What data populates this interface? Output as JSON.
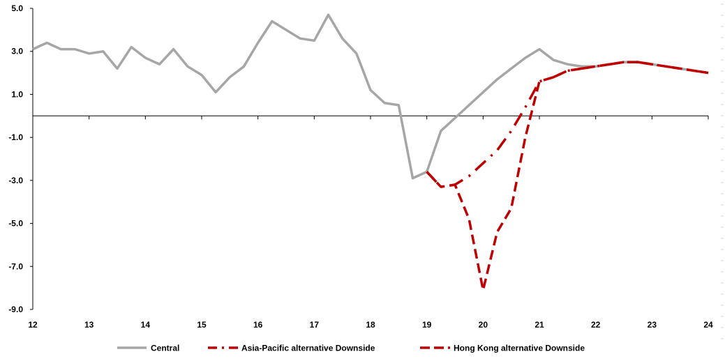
{
  "chart_data": {
    "type": "line",
    "title": "",
    "xlabel": "",
    "ylabel": "",
    "ylim": [
      -9,
      5
    ],
    "xlim": [
      12,
      24
    ],
    "y_ticks": [
      {
        "value": 5,
        "label": "5.0"
      },
      {
        "value": 3,
        "label": "3.0"
      },
      {
        "value": 1,
        "label": "1.0"
      },
      {
        "value": -1,
        "label": "-1.0"
      },
      {
        "value": -3,
        "label": "-3.0"
      },
      {
        "value": -5,
        "label": "-5.0"
      },
      {
        "value": -7,
        "label": "-7.0"
      },
      {
        "value": -9,
        "label": "-9.0"
      }
    ],
    "x_ticks": [
      {
        "value": 12,
        "label": "12"
      },
      {
        "value": 13,
        "label": "13"
      },
      {
        "value": 14,
        "label": "14"
      },
      {
        "value": 15,
        "label": "15"
      },
      {
        "value": 16,
        "label": "16"
      },
      {
        "value": 17,
        "label": "17"
      },
      {
        "value": 18,
        "label": "18"
      },
      {
        "value": 19,
        "label": "19"
      },
      {
        "value": 20,
        "label": "20"
      },
      {
        "value": 21,
        "label": "21"
      },
      {
        "value": 22,
        "label": "22"
      },
      {
        "value": 23,
        "label": "23"
      },
      {
        "value": 24,
        "label": "24"
      }
    ],
    "grid": false,
    "legend": "bottom",
    "series": [
      {
        "name": "Central",
        "color": "#a6a6a6",
        "style": "solid",
        "points": [
          [
            12.0,
            3.1
          ],
          [
            12.25,
            3.4
          ],
          [
            12.5,
            3.1
          ],
          [
            12.75,
            3.1
          ],
          [
            13.0,
            2.9
          ],
          [
            13.25,
            3.0
          ],
          [
            13.5,
            2.2
          ],
          [
            13.75,
            3.2
          ],
          [
            14.0,
            2.7
          ],
          [
            14.25,
            2.4
          ],
          [
            14.5,
            3.1
          ],
          [
            14.75,
            2.3
          ],
          [
            15.0,
            1.9
          ],
          [
            15.25,
            1.1
          ],
          [
            15.5,
            1.8
          ],
          [
            15.75,
            2.3
          ],
          [
            16.0,
            3.4
          ],
          [
            16.25,
            4.4
          ],
          [
            16.5,
            4.0
          ],
          [
            16.75,
            3.6
          ],
          [
            17.0,
            3.5
          ],
          [
            17.25,
            4.7
          ],
          [
            17.5,
            3.6
          ],
          [
            17.75,
            2.9
          ],
          [
            18.0,
            1.2
          ],
          [
            18.25,
            0.6
          ],
          [
            18.5,
            0.5
          ],
          [
            18.75,
            -2.9
          ],
          [
            19.0,
            -2.6
          ],
          [
            19.25,
            -0.7
          ],
          [
            19.5,
            -0.1
          ],
          [
            19.75,
            0.5
          ],
          [
            20.0,
            1.1
          ],
          [
            20.25,
            1.7
          ],
          [
            20.5,
            2.2
          ],
          [
            20.75,
            2.7
          ],
          [
            21.0,
            3.1
          ],
          [
            21.25,
            2.6
          ],
          [
            21.5,
            2.4
          ],
          [
            21.75,
            2.3
          ],
          [
            22.0,
            2.3
          ],
          [
            22.25,
            2.4
          ],
          [
            22.5,
            2.5
          ],
          [
            22.75,
            2.5
          ],
          [
            23.0,
            2.4
          ],
          [
            23.25,
            2.3
          ],
          [
            23.5,
            2.2
          ],
          [
            23.75,
            2.1
          ],
          [
            24.0,
            2.0
          ]
        ]
      },
      {
        "name": "Asia-Pacific alternative Downside",
        "color": "#c00000",
        "style": "dashdot",
        "points": [
          [
            19.0,
            -2.6
          ],
          [
            19.25,
            -3.3
          ],
          [
            19.5,
            -3.2
          ],
          [
            19.75,
            -2.8
          ],
          [
            20.0,
            -2.2
          ],
          [
            20.25,
            -1.6
          ],
          [
            20.5,
            -0.7
          ],
          [
            20.75,
            0.4
          ],
          [
            21.0,
            1.6
          ],
          [
            21.25,
            1.8
          ],
          [
            21.5,
            2.1
          ],
          [
            21.75,
            2.2
          ],
          [
            22.0,
            2.3
          ],
          [
            22.25,
            2.4
          ],
          [
            22.5,
            2.5
          ],
          [
            22.75,
            2.5
          ],
          [
            23.0,
            2.4
          ],
          [
            23.25,
            2.3
          ],
          [
            23.5,
            2.2
          ],
          [
            23.75,
            2.1
          ],
          [
            24.0,
            2.0
          ]
        ]
      },
      {
        "name": "Hong Kong alternative Downside",
        "color": "#c00000",
        "style": "dashed",
        "points": [
          [
            19.0,
            -2.6
          ],
          [
            19.25,
            -3.3
          ],
          [
            19.5,
            -3.2
          ],
          [
            19.75,
            -4.8
          ],
          [
            20.0,
            -8.1
          ],
          [
            20.25,
            -5.4
          ],
          [
            20.5,
            -4.3
          ],
          [
            20.75,
            -1.0
          ],
          [
            21.0,
            1.6
          ],
          [
            21.25,
            1.8
          ],
          [
            21.5,
            2.1
          ],
          [
            21.75,
            2.2
          ],
          [
            22.0,
            2.3
          ],
          [
            22.25,
            2.4
          ],
          [
            22.5,
            2.5
          ],
          [
            22.75,
            2.5
          ],
          [
            23.0,
            2.4
          ],
          [
            23.25,
            2.3
          ],
          [
            23.5,
            2.2
          ],
          [
            23.75,
            2.1
          ],
          [
            24.0,
            2.0
          ]
        ]
      }
    ]
  }
}
